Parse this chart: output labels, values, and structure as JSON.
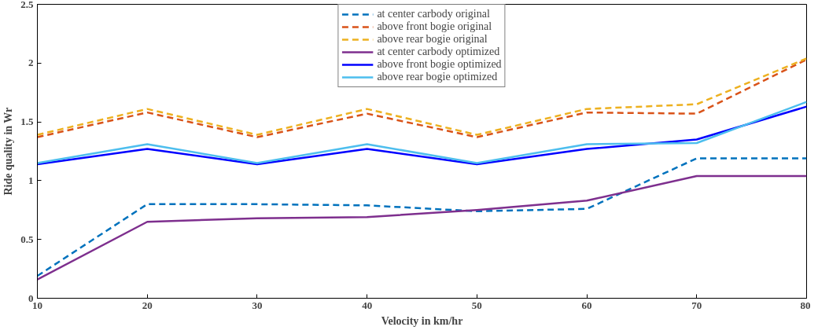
{
  "chart_data": {
    "type": "line",
    "xlabel": "Velocity in km/hr",
    "ylabel": "Ride quality in Wr",
    "x": [
      10,
      20,
      30,
      40,
      50,
      60,
      70,
      80
    ],
    "xlim": [
      10,
      80
    ],
    "xticks": [
      10,
      20,
      30,
      40,
      50,
      60,
      70,
      80
    ],
    "ylim": [
      0,
      2.5
    ],
    "yticks": [
      0,
      0.5,
      1,
      1.5,
      2,
      2.5
    ],
    "grid": false,
    "legend": "top",
    "marker": "none",
    "series": [
      {
        "name": "at center carbody original",
        "color": "#0072bd",
        "line_style": "dashed",
        "values": [
          0.19,
          0.8,
          0.8,
          0.79,
          0.74,
          0.76,
          1.19,
          1.19
        ]
      },
      {
        "name": "above front bogie original",
        "color": "#d95319",
        "line_style": "dashed",
        "values": [
          1.37,
          1.58,
          1.37,
          1.57,
          1.37,
          1.58,
          1.57,
          2.03
        ]
      },
      {
        "name": "above rear bogie original",
        "color": "#edb120",
        "line_style": "dashed",
        "values": [
          1.39,
          1.61,
          1.39,
          1.61,
          1.39,
          1.61,
          1.65,
          2.04
        ]
      },
      {
        "name": "at center carbody optimized",
        "color": "#7e2f8e",
        "line_style": "solid",
        "values": [
          0.16,
          0.65,
          0.68,
          0.69,
          0.75,
          0.83,
          1.04,
          1.04
        ]
      },
      {
        "name": "above front bogie optimized",
        "color": "#0000ff",
        "line_style": "solid",
        "values": [
          1.14,
          1.27,
          1.14,
          1.27,
          1.14,
          1.27,
          1.35,
          1.63
        ]
      },
      {
        "name": "above rear bogie optimized",
        "color": "#4dbeee",
        "line_style": "solid",
        "values": [
          1.15,
          1.31,
          1.15,
          1.31,
          1.15,
          1.31,
          1.32,
          1.67
        ]
      }
    ]
  }
}
